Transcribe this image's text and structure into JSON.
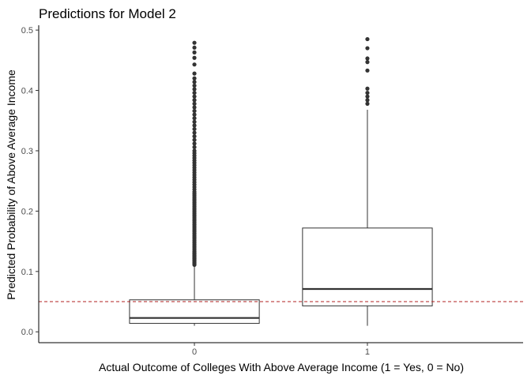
{
  "chart_data": {
    "type": "boxplot",
    "title": "Predictions for Model 2",
    "xlabel": "Actual Outcome of Colleges With Above Average Income (1 = Yes, 0 = No)",
    "ylabel": "Predicted Probability of Above Average Income",
    "categories": [
      "0",
      "1"
    ],
    "ylim": [
      -0.018,
      0.508
    ],
    "yticks": [
      0.0,
      0.1,
      0.2,
      0.3,
      0.4,
      0.5
    ],
    "ytick_labels": [
      "0.0",
      "0.1",
      "0.2",
      "0.3",
      "0.4",
      "0.5"
    ],
    "grid": false,
    "reference_line": {
      "y": 0.05,
      "style": "dashed",
      "color": "#b22222"
    },
    "boxes": [
      {
        "category": "0",
        "whisker_low": 0.01,
        "q1": 0.014,
        "median": 0.023,
        "q3": 0.053,
        "whisker_high": 0.11,
        "outliers": [
          0.111,
          0.113,
          0.115,
          0.117,
          0.119,
          0.121,
          0.123,
          0.125,
          0.127,
          0.129,
          0.131,
          0.133,
          0.136,
          0.139,
          0.142,
          0.145,
          0.148,
          0.151,
          0.154,
          0.157,
          0.16,
          0.163,
          0.166,
          0.169,
          0.172,
          0.175,
          0.178,
          0.181,
          0.184,
          0.187,
          0.19,
          0.193,
          0.196,
          0.199,
          0.202,
          0.205,
          0.208,
          0.211,
          0.214,
          0.217,
          0.22,
          0.223,
          0.226,
          0.229,
          0.232,
          0.236,
          0.24,
          0.244,
          0.248,
          0.252,
          0.256,
          0.26,
          0.264,
          0.268,
          0.272,
          0.276,
          0.28,
          0.284,
          0.288,
          0.292,
          0.296,
          0.3,
          0.306,
          0.312,
          0.318,
          0.324,
          0.33,
          0.336,
          0.342,
          0.348,
          0.354,
          0.36,
          0.366,
          0.372,
          0.378,
          0.384,
          0.39,
          0.396,
          0.402,
          0.408,
          0.414,
          0.42,
          0.428,
          0.443,
          0.454,
          0.463,
          0.471,
          0.479
        ]
      },
      {
        "category": "1",
        "whisker_low": 0.01,
        "q1": 0.043,
        "median": 0.071,
        "q3": 0.172,
        "whisker_high": 0.368,
        "outliers": [
          0.378,
          0.384,
          0.39,
          0.396,
          0.403,
          0.433,
          0.447,
          0.453,
          0.47,
          0.485
        ]
      }
    ],
    "style": {
      "line_color": "#333333",
      "point_color": "#333333",
      "axis_color": "#000000"
    }
  }
}
